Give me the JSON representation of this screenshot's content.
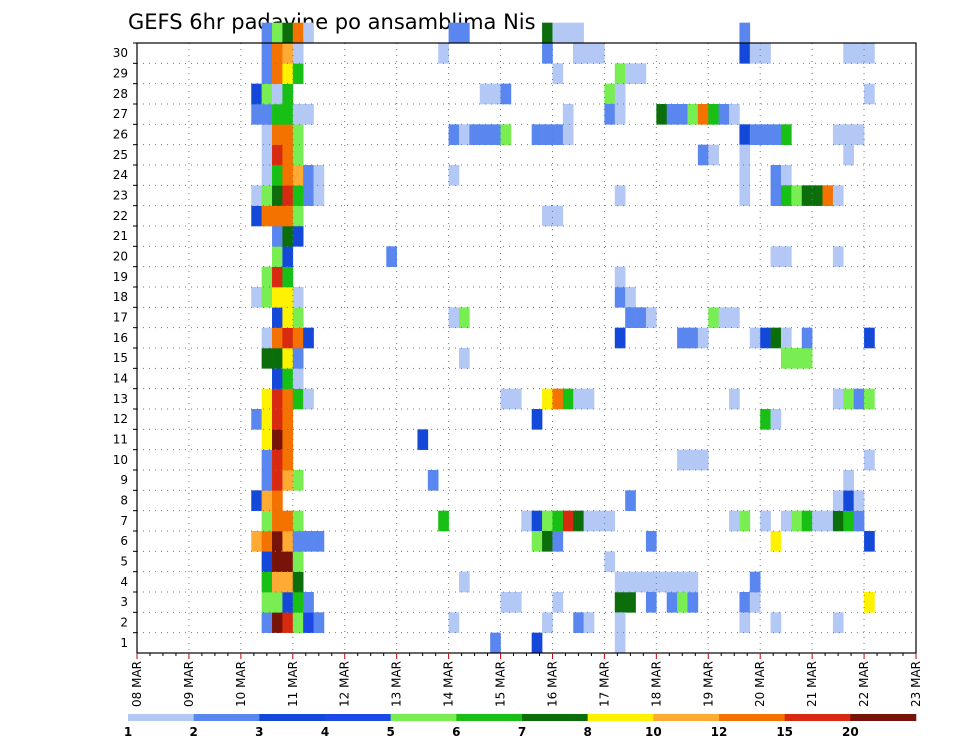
{
  "chart_data": {
    "type": "heatmap",
    "title": "GEFS 6hr padavine po ansamblima Nis",
    "xlabel": "",
    "ylabel": "",
    "x_tick_labels": [
      "08 MAR",
      "09 MAR",
      "10 MAR",
      "11 MAR",
      "12 MAR",
      "13 MAR",
      "14 MAR",
      "15 MAR",
      "16 MAR",
      "17 MAR",
      "18 MAR",
      "19 MAR",
      "20 MAR",
      "21 MAR",
      "22 MAR",
      "23 MAR"
    ],
    "x_range_days": [
      0,
      15
    ],
    "y_tick_labels": [
      "1",
      "2",
      "3",
      "4",
      "5",
      "6",
      "7",
      "8",
      "9",
      "10",
      "11",
      "12",
      "13",
      "14",
      "15",
      "16",
      "17",
      "18",
      "19",
      "20",
      "21",
      "22",
      "23",
      "24",
      "25",
      "26",
      "27",
      "28",
      "29",
      "30"
    ],
    "y_range": [
      0,
      30
    ],
    "grid": true,
    "colorbar": {
      "labels": [
        "1",
        "2",
        "3",
        "4",
        "5",
        "6",
        "7",
        "8",
        "10",
        "12",
        "15",
        "20"
      ],
      "colors": [
        "#b4c8f5",
        "#5a87ef",
        "#1448d9",
        "#1b48e6",
        "#78ee52",
        "#18c016",
        "#0b6e0b",
        "#fff200",
        "#ffaa32",
        "#f37200",
        "#d72a11",
        "#781309"
      ]
    },
    "note_units": "mm",
    "cells": [
      [
        2.4,
        1,
        1
      ],
      [
        2.6,
        1,
        11
      ],
      [
        2.8,
        1,
        10
      ],
      [
        3.0,
        1,
        4
      ],
      [
        3.2,
        1,
        3
      ],
      [
        3.4,
        1,
        1
      ],
      [
        2.4,
        2,
        4
      ],
      [
        2.6,
        2,
        4
      ],
      [
        2.8,
        2,
        2
      ],
      [
        3.0,
        2,
        5
      ],
      [
        3.2,
        2,
        1
      ],
      [
        2.4,
        3,
        5
      ],
      [
        2.6,
        3,
        8
      ],
      [
        2.8,
        3,
        8
      ],
      [
        3.0,
        3,
        6
      ],
      [
        2.4,
        4,
        2
      ],
      [
        2.6,
        4,
        11
      ],
      [
        2.8,
        4,
        11
      ],
      [
        3.0,
        4,
        4
      ],
      [
        2.2,
        5,
        8
      ],
      [
        2.4,
        5,
        9
      ],
      [
        2.6,
        5,
        11
      ],
      [
        2.8,
        5,
        8
      ],
      [
        3.0,
        5,
        1
      ],
      [
        3.2,
        5,
        1
      ],
      [
        3.4,
        5,
        1
      ],
      [
        2.4,
        6,
        4
      ],
      [
        2.6,
        6,
        9
      ],
      [
        2.8,
        6,
        9
      ],
      [
        3.0,
        6,
        4
      ],
      [
        2.2,
        7,
        2
      ],
      [
        2.4,
        7,
        8
      ],
      [
        2.6,
        7,
        9
      ],
      [
        2.4,
        8,
        1
      ],
      [
        2.6,
        8,
        10
      ],
      [
        2.8,
        8,
        8
      ],
      [
        3.0,
        8,
        4
      ],
      [
        2.4,
        9,
        1
      ],
      [
        2.6,
        9,
        10
      ],
      [
        2.8,
        9,
        9
      ],
      [
        2.4,
        10,
        7
      ],
      [
        2.6,
        10,
        11
      ],
      [
        2.8,
        10,
        9
      ],
      [
        2.2,
        11,
        1
      ],
      [
        2.4,
        11,
        7
      ],
      [
        2.6,
        11,
        10
      ],
      [
        2.8,
        11,
        9
      ],
      [
        2.4,
        12,
        7
      ],
      [
        2.6,
        12,
        10
      ],
      [
        2.8,
        12,
        9
      ],
      [
        3.0,
        12,
        5
      ],
      [
        3.2,
        12,
        0
      ],
      [
        2.6,
        13,
        2
      ],
      [
        2.8,
        13,
        5
      ],
      [
        3.0,
        13,
        0
      ],
      [
        2.4,
        14,
        6
      ],
      [
        2.6,
        14,
        6
      ],
      [
        2.8,
        14,
        7
      ],
      [
        3.0,
        14,
        1
      ],
      [
        2.4,
        15,
        0
      ],
      [
        2.6,
        15,
        9
      ],
      [
        2.8,
        15,
        10
      ],
      [
        3.0,
        15,
        9
      ],
      [
        3.2,
        15,
        2
      ],
      [
        2.6,
        16,
        2
      ],
      [
        2.8,
        16,
        7
      ],
      [
        3.0,
        16,
        4
      ],
      [
        2.2,
        17,
        0
      ],
      [
        2.4,
        17,
        4
      ],
      [
        2.6,
        17,
        7
      ],
      [
        2.8,
        17,
        7
      ],
      [
        3.0,
        17,
        0
      ],
      [
        2.4,
        18,
        4
      ],
      [
        2.6,
        18,
        10
      ],
      [
        2.8,
        18,
        5
      ],
      [
        2.6,
        19,
        4
      ],
      [
        2.8,
        19,
        2
      ],
      [
        2.6,
        20,
        1
      ],
      [
        2.8,
        20,
        6
      ],
      [
        3.0,
        20,
        2
      ],
      [
        2.2,
        21,
        2
      ],
      [
        2.4,
        21,
        9
      ],
      [
        2.6,
        21,
        9
      ],
      [
        2.8,
        21,
        9
      ],
      [
        3.0,
        21,
        4
      ],
      [
        2.2,
        22,
        0
      ],
      [
        2.4,
        22,
        4
      ],
      [
        2.6,
        22,
        6
      ],
      [
        2.8,
        22,
        10
      ],
      [
        3.0,
        22,
        5
      ],
      [
        3.2,
        22,
        1
      ],
      [
        3.4,
        22,
        0
      ],
      [
        2.4,
        23,
        0
      ],
      [
        2.6,
        23,
        5
      ],
      [
        2.8,
        23,
        9
      ],
      [
        3.0,
        23,
        8
      ],
      [
        3.2,
        23,
        1
      ],
      [
        3.4,
        23,
        0
      ],
      [
        2.4,
        24,
        0
      ],
      [
        2.6,
        24,
        10
      ],
      [
        2.8,
        24,
        9
      ],
      [
        3.0,
        24,
        4
      ],
      [
        2.4,
        25,
        0
      ],
      [
        2.6,
        25,
        9
      ],
      [
        2.8,
        25,
        9
      ],
      [
        3.0,
        25,
        4
      ],
      [
        2.2,
        26,
        1
      ],
      [
        2.4,
        26,
        1
      ],
      [
        2.6,
        26,
        5
      ],
      [
        2.8,
        26,
        5
      ],
      [
        3.0,
        26,
        0
      ],
      [
        3.2,
        26,
        0
      ],
      [
        2.2,
        27,
        2
      ],
      [
        2.4,
        27,
        4
      ],
      [
        2.6,
        27,
        0
      ],
      [
        2.8,
        27,
        5
      ],
      [
        2.4,
        28,
        1
      ],
      [
        2.6,
        28,
        9
      ],
      [
        2.8,
        28,
        7
      ],
      [
        3.0,
        28,
        5
      ],
      [
        2.4,
        29,
        1
      ],
      [
        2.6,
        29,
        9
      ],
      [
        2.8,
        29,
        8
      ],
      [
        3.0,
        29,
        0
      ],
      [
        2.4,
        30,
        1
      ],
      [
        2.6,
        30,
        4
      ],
      [
        2.8,
        30,
        6
      ],
      [
        3.0,
        30,
        9
      ],
      [
        3.2,
        30,
        0
      ],
      [
        4.8,
        19,
        1
      ],
      [
        5.4,
        10,
        2
      ],
      [
        5.6,
        8,
        1
      ],
      [
        5.8,
        6,
        5
      ],
      [
        6.0,
        1,
        0
      ],
      [
        6.0,
        25,
        1
      ],
      [
        6.2,
        25,
        0
      ],
      [
        6.4,
        25,
        1
      ],
      [
        6.6,
        25,
        1
      ],
      [
        6.8,
        25,
        1
      ],
      [
        7.0,
        25,
        4
      ],
      [
        6.0,
        30,
        1
      ],
      [
        6.2,
        30,
        1
      ],
      [
        5.8,
        29,
        0
      ],
      [
        6.0,
        23,
        0
      ],
      [
        6.0,
        16,
        0
      ],
      [
        6.2,
        16,
        4
      ],
      [
        6.2,
        14,
        0
      ],
      [
        6.2,
        3,
        0
      ],
      [
        6.6,
        27,
        0
      ],
      [
        6.8,
        27,
        0
      ],
      [
        7.0,
        27,
        1
      ],
      [
        7.0,
        12,
        0
      ],
      [
        7.2,
        12,
        0
      ],
      [
        7.0,
        2,
        0
      ],
      [
        7.2,
        2,
        0
      ],
      [
        6.8,
        0,
        1
      ],
      [
        7.4,
        6,
        0
      ],
      [
        7.6,
        6,
        2
      ],
      [
        7.8,
        6,
        4
      ],
      [
        8.0,
        6,
        5
      ],
      [
        8.2,
        6,
        10
      ],
      [
        8.4,
        6,
        6
      ],
      [
        8.6,
        6,
        0
      ],
      [
        8.8,
        6,
        0
      ],
      [
        9.0,
        6,
        0
      ],
      [
        7.6,
        5,
        4
      ],
      [
        7.8,
        5,
        6
      ],
      [
        8.0,
        5,
        1
      ],
      [
        7.6,
        11,
        2
      ],
      [
        7.8,
        12,
        7
      ],
      [
        8.0,
        12,
        9
      ],
      [
        8.2,
        12,
        5
      ],
      [
        8.4,
        12,
        0
      ],
      [
        8.6,
        12,
        0
      ],
      [
        7.6,
        25,
        1
      ],
      [
        7.8,
        25,
        1
      ],
      [
        8.0,
        25,
        1
      ],
      [
        8.2,
        25,
        0
      ],
      [
        7.8,
        21,
        0
      ],
      [
        8.0,
        21,
        0
      ],
      [
        7.6,
        0,
        2
      ],
      [
        7.8,
        1,
        0
      ],
      [
        8.0,
        2,
        0
      ],
      [
        8.4,
        1,
        1
      ],
      [
        8.6,
        1,
        0
      ],
      [
        7.8,
        30,
        6
      ],
      [
        8.0,
        30,
        0
      ],
      [
        8.2,
        30,
        0
      ],
      [
        8.4,
        30,
        0
      ],
      [
        7.8,
        29,
        1
      ],
      [
        8.4,
        29,
        1
      ],
      [
        8.6,
        29,
        0
      ],
      [
        8.8,
        29,
        0
      ],
      [
        8.0,
        28,
        0
      ],
      [
        8.2,
        26,
        0
      ],
      [
        8.4,
        29,
        0
      ],
      [
        9.0,
        27,
        4
      ],
      [
        9.0,
        26,
        1
      ],
      [
        9.2,
        26,
        0
      ],
      [
        9.2,
        28,
        4
      ],
      [
        9.4,
        28,
        0
      ],
      [
        9.6,
        28,
        0
      ],
      [
        9.2,
        27,
        0
      ],
      [
        9.2,
        22,
        0
      ],
      [
        9.2,
        17,
        1
      ],
      [
        9.4,
        17,
        0
      ],
      [
        9.4,
        16,
        1
      ],
      [
        9.6,
        16,
        1
      ],
      [
        9.8,
        16,
        0
      ],
      [
        9.2,
        15,
        2
      ],
      [
        9.2,
        18,
        0
      ],
      [
        9.2,
        2,
        6
      ],
      [
        9.4,
        2,
        6
      ],
      [
        9.2,
        3,
        0
      ],
      [
        9.4,
        3,
        0
      ],
      [
        9.6,
        3,
        0
      ],
      [
        9.8,
        3,
        0
      ],
      [
        9.4,
        7,
        1
      ],
      [
        9.2,
        1,
        0
      ],
      [
        9.2,
        0,
        0
      ],
      [
        9.0,
        4,
        0
      ],
      [
        9.8,
        2,
        1
      ],
      [
        10.2,
        2,
        1
      ],
      [
        10.4,
        2,
        4
      ],
      [
        10.6,
        2,
        1
      ],
      [
        10.0,
        3,
        0
      ],
      [
        10.2,
        3,
        0
      ],
      [
        10.4,
        3,
        0
      ],
      [
        10.6,
        3,
        0
      ],
      [
        9.8,
        5,
        1
      ],
      [
        10.4,
        9,
        0
      ],
      [
        10.6,
        9,
        0
      ],
      [
        10.8,
        9,
        0
      ],
      [
        10.0,
        26,
        6
      ],
      [
        10.2,
        26,
        1
      ],
      [
        10.4,
        26,
        1
      ],
      [
        10.6,
        26,
        4
      ],
      [
        10.8,
        26,
        9
      ],
      [
        11.0,
        26,
        5
      ],
      [
        11.2,
        26,
        1
      ],
      [
        11.4,
        26,
        0
      ],
      [
        10.8,
        24,
        1
      ],
      [
        11.0,
        24,
        0
      ],
      [
        10.4,
        15,
        1
      ],
      [
        10.6,
        15,
        1
      ],
      [
        10.8,
        15,
        0
      ],
      [
        11.4,
        16,
        0
      ],
      [
        11.0,
        16,
        4
      ],
      [
        11.2,
        16,
        0
      ],
      [
        11.6,
        25,
        2
      ],
      [
        11.6,
        24,
        0
      ],
      [
        11.6,
        23,
        0
      ],
      [
        11.6,
        22,
        0
      ],
      [
        11.8,
        25,
        1
      ],
      [
        12.0,
        25,
        1
      ],
      [
        12.2,
        25,
        1
      ],
      [
        12.4,
        25,
        5
      ],
      [
        11.6,
        30,
        1
      ],
      [
        11.6,
        29,
        2
      ],
      [
        11.8,
        29,
        0
      ],
      [
        12.0,
        29,
        0
      ],
      [
        11.8,
        15,
        0
      ],
      [
        12.0,
        15,
        2
      ],
      [
        12.2,
        15,
        6
      ],
      [
        12.4,
        15,
        0
      ],
      [
        12.0,
        6,
        0
      ],
      [
        12.4,
        6,
        0
      ],
      [
        11.6,
        2,
        1
      ],
      [
        11.8,
        2,
        0
      ],
      [
        11.6,
        1,
        0
      ],
      [
        11.8,
        3,
        1
      ],
      [
        11.4,
        12,
        0
      ],
      [
        12.0,
        11,
        5
      ],
      [
        12.2,
        11,
        0
      ],
      [
        11.6,
        6,
        4
      ],
      [
        11.4,
        6,
        0
      ],
      [
        12.2,
        1,
        0
      ],
      [
        12.2,
        23,
        1
      ],
      [
        12.4,
        23,
        0
      ],
      [
        12.2,
        22,
        1
      ],
      [
        12.4,
        22,
        5
      ],
      [
        12.6,
        22,
        4
      ],
      [
        12.8,
        22,
        6
      ],
      [
        13.0,
        22,
        6
      ],
      [
        13.2,
        22,
        9
      ],
      [
        13.4,
        22,
        0
      ],
      [
        12.2,
        19,
        0
      ],
      [
        12.4,
        19,
        0
      ],
      [
        12.6,
        14,
        4
      ],
      [
        12.8,
        14,
        4
      ],
      [
        12.4,
        14,
        4
      ],
      [
        12.8,
        15,
        1
      ],
      [
        12.6,
        6,
        4
      ],
      [
        12.8,
        6,
        5
      ],
      [
        13.0,
        6,
        0
      ],
      [
        13.2,
        6,
        0
      ],
      [
        13.4,
        6,
        6
      ],
      [
        13.6,
        6,
        5
      ],
      [
        13.8,
        6,
        1
      ],
      [
        12.2,
        5,
        7
      ],
      [
        13.4,
        19,
        0
      ],
      [
        13.4,
        12,
        0
      ],
      [
        13.6,
        12,
        4
      ],
      [
        13.8,
        12,
        1
      ],
      [
        14.0,
        12,
        4
      ],
      [
        13.4,
        7,
        0
      ],
      [
        13.6,
        7,
        2
      ],
      [
        13.8,
        7,
        0
      ],
      [
        13.6,
        8,
        0
      ],
      [
        13.4,
        1,
        0
      ],
      [
        13.4,
        25,
        0
      ],
      [
        13.6,
        25,
        0
      ],
      [
        13.8,
        25,
        0
      ],
      [
        13.6,
        24,
        0
      ],
      [
        13.6,
        29,
        0
      ],
      [
        13.8,
        29,
        0
      ],
      [
        14.0,
        29,
        0
      ],
      [
        14.0,
        27,
        0
      ],
      [
        14.0,
        15,
        2
      ],
      [
        14.0,
        9,
        0
      ],
      [
        14.0,
        5,
        2
      ],
      [
        14.0,
        2,
        7
      ]
    ]
  }
}
